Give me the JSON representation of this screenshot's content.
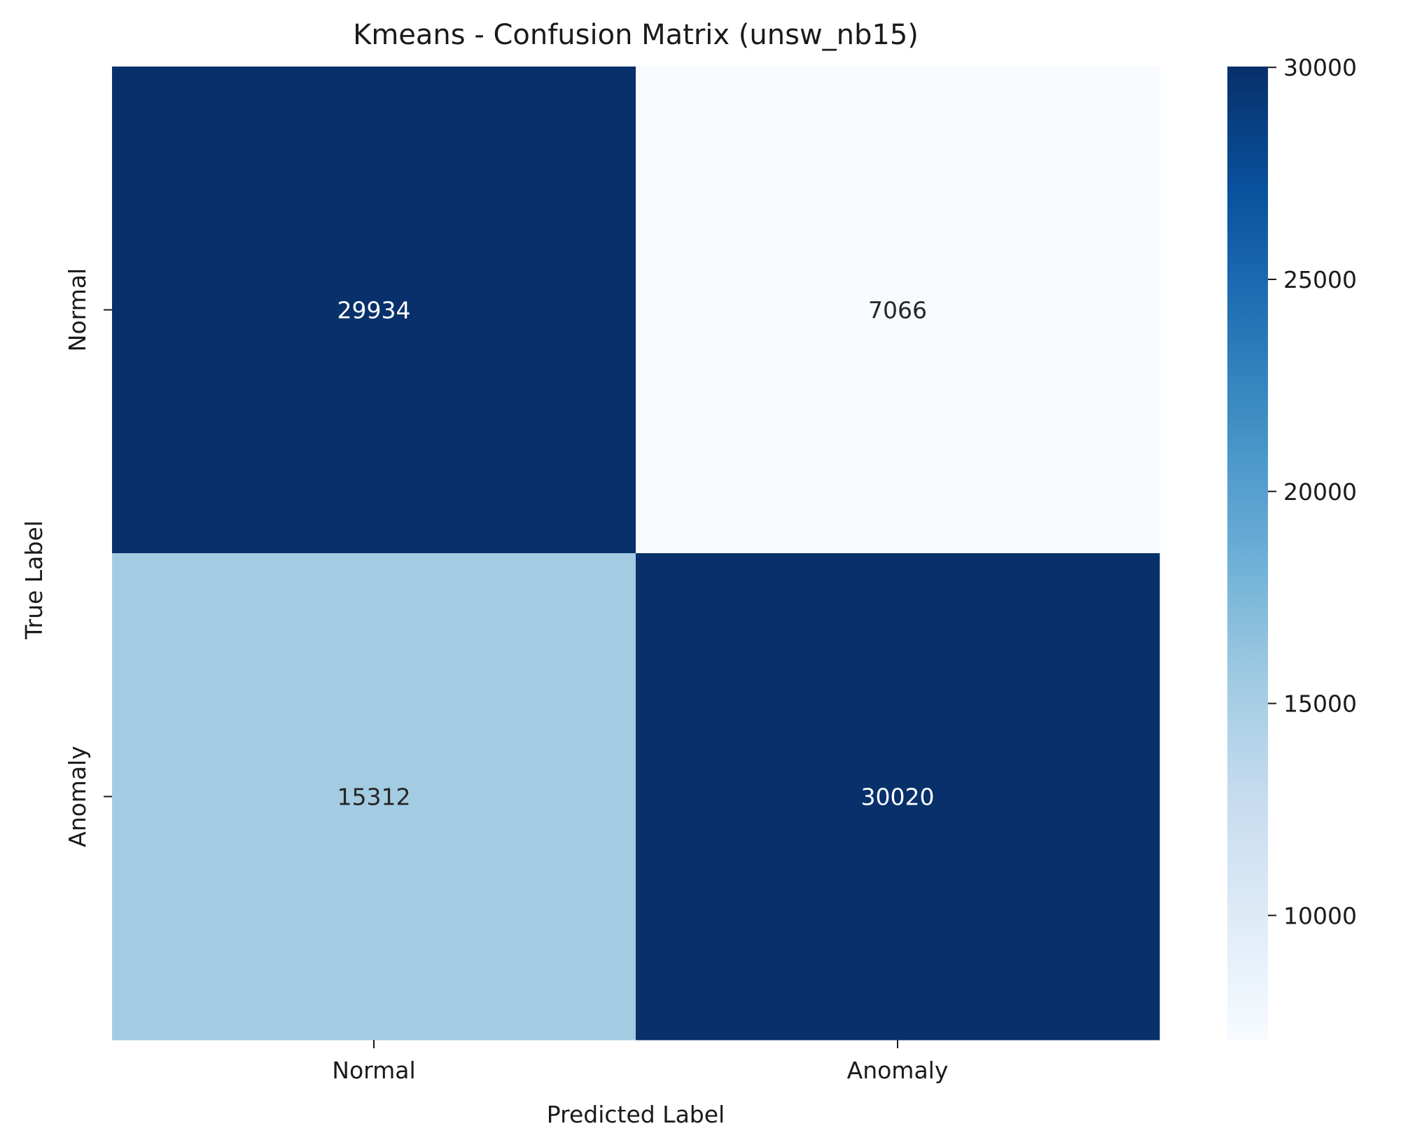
{
  "chart_data": {
    "type": "heatmap",
    "title": "Kmeans - Confusion Matrix (unsw_nb15)",
    "xlabel": "Predicted Label",
    "ylabel": "True Label",
    "x_categories": [
      "Normal",
      "Anomaly"
    ],
    "y_categories": [
      "Normal",
      "Anomaly"
    ],
    "values": [
      [
        29934,
        7066
      ],
      [
        15312,
        30020
      ]
    ],
    "cell_labels": [
      [
        "29934",
        "7066"
      ],
      [
        "15312",
        "30020"
      ]
    ],
    "colorscale": "Blues",
    "colorbar": {
      "range": [
        7066,
        30020
      ],
      "ticks": [
        10000,
        15000,
        20000,
        25000,
        30000
      ],
      "tick_labels": [
        "10000",
        "15000",
        "20000",
        "25000",
        "30000"
      ]
    }
  }
}
